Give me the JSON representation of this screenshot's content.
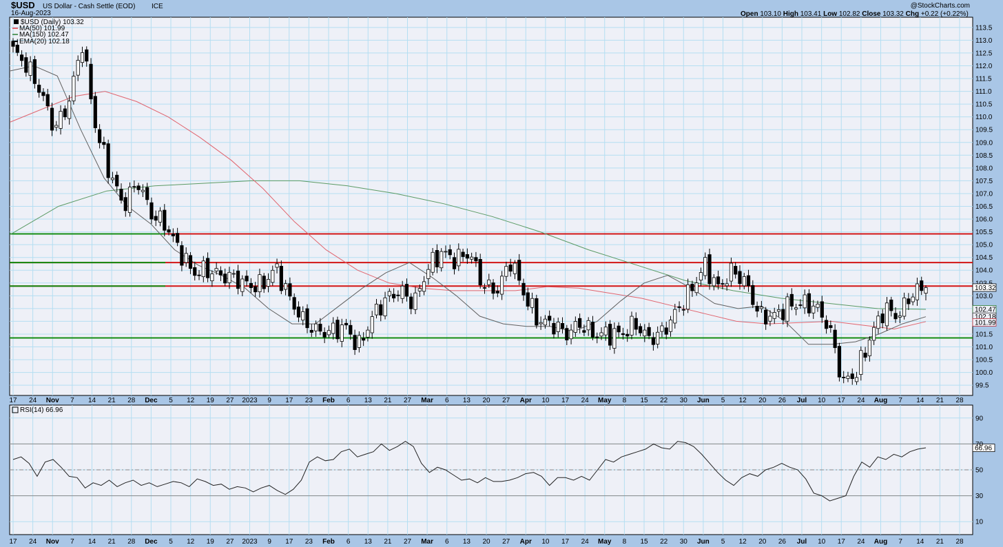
{
  "header": {
    "symbol": "$USD",
    "name": "US Dollar - Cash Settle (EOD)",
    "exchange": "ICE",
    "date": "16-Aug-2023",
    "watermark": "@StockCharts.com",
    "ohlc": {
      "open_label": "Open",
      "open": "103.10",
      "high_label": "High",
      "high": "103.41",
      "low_label": "Low",
      "low": "102.82",
      "close_label": "Close",
      "close": "103.32",
      "chg_label": "Chg",
      "chg": "+0.22 (+0.22%)"
    }
  },
  "legend": {
    "price": "$USD (Daily) 103.32",
    "ma50": "MA(50) 101.99",
    "ma150": "MA(150) 102.47",
    "ema20": "EMA(20) 102.18"
  },
  "rsi_legend": "RSI(14) 66.96",
  "colors": {
    "background": "#eef0f7",
    "frame": "#a9c6e6",
    "grid": "#b4def2",
    "ma50": "#e0646e",
    "ma150": "#5a9a64",
    "ema20": "#606060",
    "resistance": "#d21414",
    "support": "#128c12"
  },
  "chart_data": {
    "type": "candlestick",
    "price_axis": {
      "ylim": [
        99.1,
        113.9
      ],
      "ticks": [
        "113.5",
        "113.0",
        "112.5",
        "112.0",
        "111.5",
        "111.0",
        "110.5",
        "110.0",
        "109.5",
        "109.0",
        "108.5",
        "108.0",
        "107.5",
        "107.0",
        "106.5",
        "106.0",
        "105.5",
        "105.0",
        "104.5",
        "104.0",
        "103.5",
        "103.0",
        "102.5",
        "102.0",
        "101.5",
        "101.0",
        "100.5",
        "100.0",
        "99.5"
      ]
    },
    "date_axis": {
      "ticks": [
        "17",
        "24",
        "Nov",
        "7",
        "14",
        "21",
        "28",
        "Dec",
        "5",
        "12",
        "19",
        "27",
        "2023",
        "9",
        "17",
        "23",
        "Feb",
        "6",
        "13",
        "21",
        "27",
        "Mar",
        "6",
        "13",
        "20",
        "27",
        "Apr",
        "10",
        "17",
        "24",
        "May",
        "8",
        "15",
        "22",
        "30",
        "Jun",
        "5",
        "12",
        "20",
        "26",
        "Jul",
        "10",
        "17",
        "24",
        "Aug",
        "7",
        "14",
        "21",
        "28"
      ]
    },
    "price_labels": {
      "close": "103.32",
      "ma150": "102.47",
      "ema20": "102.18",
      "ma50": "101.99"
    },
    "horizontal_levels": [
      {
        "value": 105.42,
        "color": "red"
      },
      {
        "value": 104.3,
        "color": "red"
      },
      {
        "value": 103.38,
        "color": "red"
      },
      {
        "value": 105.42,
        "color": "green",
        "to": "left"
      },
      {
        "value": 104.3,
        "color": "green",
        "to": "left"
      },
      {
        "value": 103.38,
        "color": "green",
        "to": "left"
      },
      {
        "value": 101.35,
        "color": "green"
      }
    ],
    "close_anchors": [
      112.6,
      112.0,
      111.0,
      109.5,
      110.5,
      112.9,
      109.5,
      107.8,
      106.5,
      107.5,
      106.2,
      105.8,
      104.8,
      103.9,
      104.0,
      103.8,
      103.7,
      103.4,
      103.4,
      104.1,
      102.9,
      102.0,
      101.6,
      101.6,
      101.8,
      101.0,
      102.2,
      102.9,
      103.2,
      102.7,
      104.1,
      104.7,
      104.4,
      104.7,
      103.4,
      103.2,
      104.4,
      103.0,
      102.0,
      101.9,
      101.5,
      101.9,
      101.5,
      101.5,
      101.5,
      101.9,
      101.3,
      101.6,
      102.4,
      103.2,
      104.2,
      103.3,
      104.0,
      103.5,
      102.2,
      102.2,
      102.6,
      102.7,
      102.6,
      101.8,
      99.6,
      100.0,
      101.4,
      102.5,
      102.2,
      103.1,
      103.32
    ],
    "ma50": [
      109.8,
      110.3,
      110.8,
      111.0,
      110.6,
      110.0,
      109.2,
      108.3,
      107.2,
      105.9,
      104.8,
      104.0,
      103.5,
      103.3,
      103.2,
      103.2,
      103.2,
      103.35,
      103.3,
      103.1,
      102.9,
      102.6,
      102.3,
      102.0,
      101.9,
      101.95,
      102.0,
      101.85,
      101.7,
      101.99
    ],
    "ma150": [
      105.4,
      106.5,
      107.1,
      107.3,
      107.4,
      107.5,
      107.5,
      107.3,
      107.0,
      106.6,
      106.1,
      105.5,
      104.8,
      104.2,
      103.6,
      103.2,
      102.9,
      102.7,
      102.5,
      102.47
    ],
    "ema20": [
      111.8,
      112.0,
      111.6,
      109.5,
      107.6,
      106.5,
      105.8,
      104.8,
      104.2,
      103.8,
      103.3,
      102.5,
      101.9,
      101.9,
      102.6,
      103.3,
      103.9,
      104.3,
      103.7,
      103.0,
      102.2,
      101.9,
      101.8,
      101.8,
      101.6,
      102.0,
      102.8,
      103.5,
      103.8,
      103.3,
      102.7,
      102.5,
      102.6,
      102.0,
      101.1,
      101.1,
      101.2,
      101.5,
      101.9,
      102.18
    ],
    "rsi": {
      "label": "RSI(14) 66.96",
      "ylim": [
        0,
        100
      ],
      "ticks": [
        "90",
        "70",
        "50",
        "30",
        "10"
      ],
      "levels": [
        70,
        50,
        30
      ],
      "last": "66.96",
      "values": [
        58,
        60,
        55,
        45,
        56,
        58,
        52,
        45,
        44,
        36,
        40,
        38,
        42,
        37,
        40,
        42,
        38,
        40,
        37,
        39,
        41,
        40,
        37,
        43,
        41,
        38,
        39,
        35,
        37,
        36,
        33,
        36,
        38,
        34,
        31,
        35,
        42,
        56,
        60,
        57,
        58,
        64,
        66,
        60,
        62,
        64,
        70,
        65,
        68,
        72,
        68,
        55,
        48,
        52,
        50,
        46,
        42,
        43,
        40,
        44,
        41,
        41,
        42,
        44,
        47,
        48,
        45,
        38,
        44,
        44,
        42,
        45,
        42,
        50,
        58,
        56,
        60,
        62,
        64,
        66,
        70,
        67,
        66,
        72,
        71,
        68,
        62,
        55,
        48,
        42,
        38,
        44,
        47,
        45,
        50,
        52,
        55,
        52,
        50,
        43,
        32,
        30,
        26,
        28,
        30,
        45,
        56,
        52,
        60,
        58,
        62,
        60,
        64,
        66,
        67
      ]
    }
  }
}
